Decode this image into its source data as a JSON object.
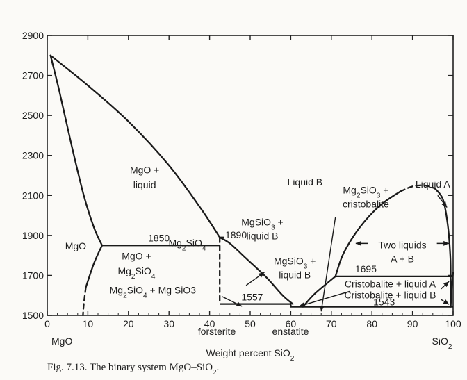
{
  "chart_data": {
    "type": "phase-diagram",
    "title": "",
    "xlabel": "Weight percent SiO2",
    "ylabel": "",
    "xlim": [
      0,
      100
    ],
    "ylim": [
      1500,
      2900
    ],
    "x_ticks": [
      0,
      10,
      20,
      30,
      40,
      50,
      60,
      70,
      80,
      90,
      100
    ],
    "x_tick_labels": [
      "0",
      "10",
      "20",
      "30",
      "40",
      "50",
      "60",
      "70",
      "80",
      "90",
      "100"
    ],
    "y_ticks": [
      1500,
      1700,
      1900,
      2100,
      2300,
      2500,
      2700,
      2900
    ],
    "y_tick_labels": [
      "1500",
      "1700",
      "1900",
      "2100",
      "2300",
      "2500",
      "2700",
      "2900"
    ],
    "end_members": {
      "left": "MgO",
      "right": "SiO2"
    },
    "compound_labels": {
      "forsterite": "forsterite",
      "enstatite": "enstatite"
    },
    "caption": "Fig. 7.13.  The binary system MgO–SiO2.",
    "isotherms": [
      {
        "label": "1850",
        "T": 1850,
        "x": [
          13.5,
          42.5
        ]
      },
      {
        "label": "1890",
        "T": 1890,
        "x": [
          42.5,
          43.5
        ]
      },
      {
        "label": "1557",
        "T": 1557,
        "x": [
          42.5,
          60
        ]
      },
      {
        "label": "1543",
        "T": 1543,
        "x": [
          60,
          100
        ]
      },
      {
        "label": "1695",
        "T": 1695,
        "x": [
          71,
          100
        ]
      }
    ],
    "curves": [
      {
        "name": "MgO liquidus",
        "style": "solid",
        "points": [
          [
            0.8,
            2800
          ],
          [
            3,
            2620
          ],
          [
            6,
            2350
          ],
          [
            9,
            2100
          ],
          [
            11.5,
            1940
          ],
          [
            13.5,
            1850
          ]
        ]
      },
      {
        "name": "MgO solvus",
        "style": "solid",
        "points": [
          [
            13.5,
            1850
          ],
          [
            11.5,
            1760
          ],
          [
            9.5,
            1640
          ]
        ]
      },
      {
        "name": "MgO solvus (dashed)",
        "style": "dashed",
        "points": [
          [
            9.5,
            1640
          ],
          [
            9,
            1555
          ],
          [
            8.8,
            1500
          ]
        ]
      },
      {
        "name": "Forsterite liquidus",
        "style": "solid",
        "points": [
          [
            0.8,
            2800
          ],
          [
            10,
            2650
          ],
          [
            20,
            2470
          ],
          [
            30,
            2250
          ],
          [
            38,
            2030
          ],
          [
            42.5,
            1890
          ]
        ]
      },
      {
        "name": "Forsterite–liquid B",
        "style": "solid",
        "points": [
          [
            42.5,
            1890
          ],
          [
            45,
            1860
          ],
          [
            49,
            1785
          ],
          [
            54,
            1690
          ],
          [
            58,
            1600
          ],
          [
            60.5,
            1557
          ]
        ]
      },
      {
        "name": "Forsterite (dashed)",
        "style": "dashed",
        "points": [
          [
            42.5,
            1890
          ],
          [
            42.5,
            1557
          ]
        ]
      },
      {
        "name": "Enstatite melting",
        "style": "solid",
        "points": [
          [
            60,
            1557
          ],
          [
            60,
            1543
          ]
        ]
      },
      {
        "name": "Cristobalite liquidus",
        "style": "solid",
        "points": [
          [
            63,
            1543
          ],
          [
            66,
            1610
          ],
          [
            71,
            1695
          ]
        ]
      },
      {
        "name": "Miscibility gap",
        "style": "solid",
        "points": [
          [
            71,
            1695
          ],
          [
            73,
            1810
          ],
          [
            77,
            1940
          ],
          [
            82,
            2050
          ],
          [
            87,
            2120
          ]
        ]
      },
      {
        "name": "Miscibility gap (dashed)",
        "style": "dashed",
        "points": [
          [
            87,
            2120
          ],
          [
            90,
            2145
          ],
          [
            93,
            2150
          ],
          [
            95.5,
            2135
          ]
        ]
      },
      {
        "name": "Miscibility gap right",
        "style": "solid",
        "points": [
          [
            95.5,
            2135
          ],
          [
            97.5,
            2080
          ],
          [
            98.7,
            1950
          ],
          [
            99.3,
            1800
          ],
          [
            99.4,
            1695
          ],
          [
            99.4,
            1543
          ]
        ]
      },
      {
        "name": "SiO2 liquidus",
        "style": "solid",
        "points": [
          [
            99.4,
            1543
          ],
          [
            99.7,
            1650
          ],
          [
            100,
            1715
          ]
        ]
      }
    ],
    "region_labels": [
      {
        "text": "MgO +",
        "x": 24,
        "y": 2210
      },
      {
        "text": "liquid",
        "x": 24,
        "y": 2135
      },
      {
        "text": "MgO",
        "x": 7,
        "y": 1830
      },
      {
        "text": "1850",
        "x": 27.5,
        "y": 1870
      },
      {
        "text": "MgO +",
        "x": 22,
        "y": 1780
      },
      {
        "text": "Mg2SiO4",
        "x": 22,
        "y": 1705
      },
      {
        "text": "Mg2SiO4",
        "x": 34.5,
        "y": 1845
      },
      {
        "text": "1890",
        "x": 46.5,
        "y": 1885
      },
      {
        "text": "MgSiO3 +",
        "x": 53,
        "y": 1950
      },
      {
        "text": "liquid B",
        "x": 53,
        "y": 1880
      },
      {
        "text": "MgSiO3 +",
        "x": 61,
        "y": 1755
      },
      {
        "text": "liquid B",
        "x": 61,
        "y": 1685
      },
      {
        "text": "Liquid B",
        "x": 63.5,
        "y": 2150
      },
      {
        "text": "Mg2SiO3 +",
        "x": 78.5,
        "y": 2110
      },
      {
        "text": "cristobalite",
        "x": 78.5,
        "y": 2040
      },
      {
        "text": "Liquid A",
        "x": 95,
        "y": 2140
      },
      {
        "text": "Two liquids",
        "x": 87.5,
        "y": 1835
      },
      {
        "text": "A + B",
        "x": 87.5,
        "y": 1765
      },
      {
        "text": "1695",
        "x": 78.5,
        "y": 1715
      },
      {
        "text": "Cristobalite + liquid A",
        "x": 84.5,
        "y": 1640
      },
      {
        "text": "Cristobalite + liquid B",
        "x": 84.5,
        "y": 1585
      },
      {
        "text": "1557",
        "x": 50.5,
        "y": 1575
      },
      {
        "text": "1543",
        "x": 83,
        "y": 1550
      },
      {
        "text": "Mg2SiO4 + Mg SiO3",
        "x": 26,
        "y": 1610
      }
    ],
    "arrows": [
      {
        "from": [
          43,
          1595
        ],
        "to": [
          48,
          1545
        ]
      },
      {
        "from": [
          49,
          1650
        ],
        "to": [
          53.5,
          1715
        ]
      },
      {
        "from": [
          71,
          1990
        ],
        "to": [
          67.5,
          1520
        ]
      },
      {
        "from": [
          74.5,
          1620
        ],
        "to": [
          62,
          1545
        ]
      },
      {
        "from": [
          79,
          1860
        ],
        "to": [
          76,
          1860
        ]
      },
      {
        "from": [
          96,
          1860
        ],
        "to": [
          99,
          1860
        ]
      },
      {
        "from": [
          96.2,
          2100
        ],
        "to": [
          98.5,
          2040
        ]
      },
      {
        "from": [
          97,
          1632
        ],
        "to": [
          99,
          1670
        ]
      },
      {
        "from": [
          97,
          1580
        ],
        "to": [
          99,
          1555
        ]
      }
    ]
  }
}
